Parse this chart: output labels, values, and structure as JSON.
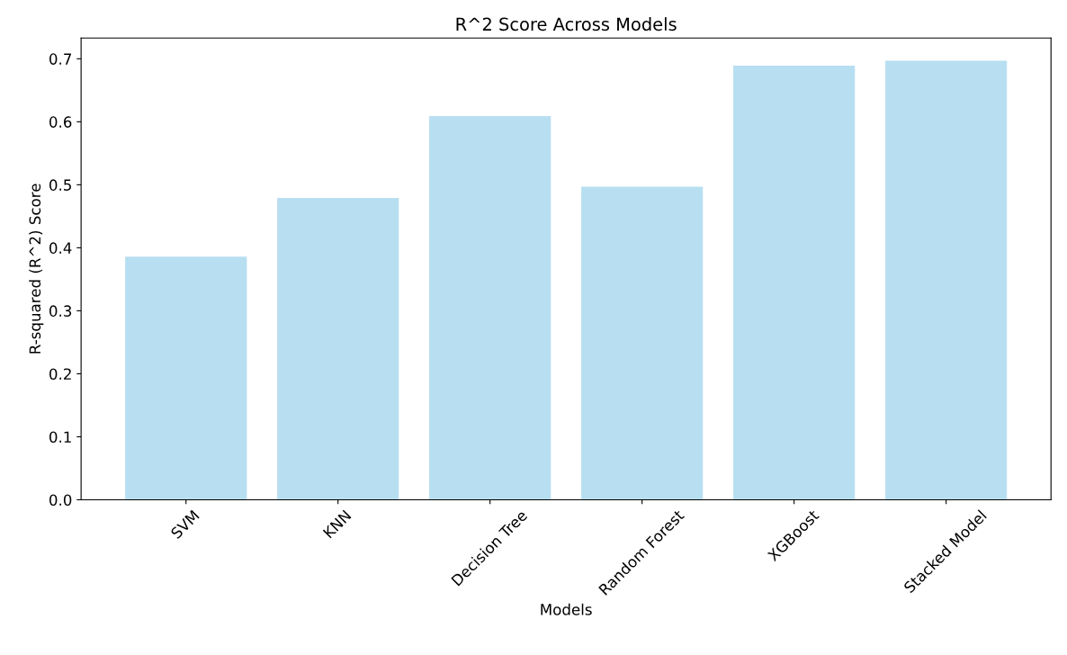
{
  "chart_data": {
    "type": "bar",
    "title": "R^2 Score Across Models",
    "xlabel": "Models",
    "ylabel": "R-squared (R^2) Score",
    "categories": [
      "SVM",
      "KNN",
      "Decision Tree",
      "Random Forest",
      "XGBoost",
      "Stacked Model"
    ],
    "values": [
      0.386,
      0.479,
      0.609,
      0.497,
      0.689,
      0.697
    ],
    "color": "#b7dff1",
    "ylim": [
      0,
      0.733
    ],
    "yticks": [
      {
        "value": 0,
        "label": "0.0"
      },
      0.1,
      0.2,
      0.3,
      0.4,
      0.5,
      0.6,
      0.7
    ],
    "grid": false
  }
}
